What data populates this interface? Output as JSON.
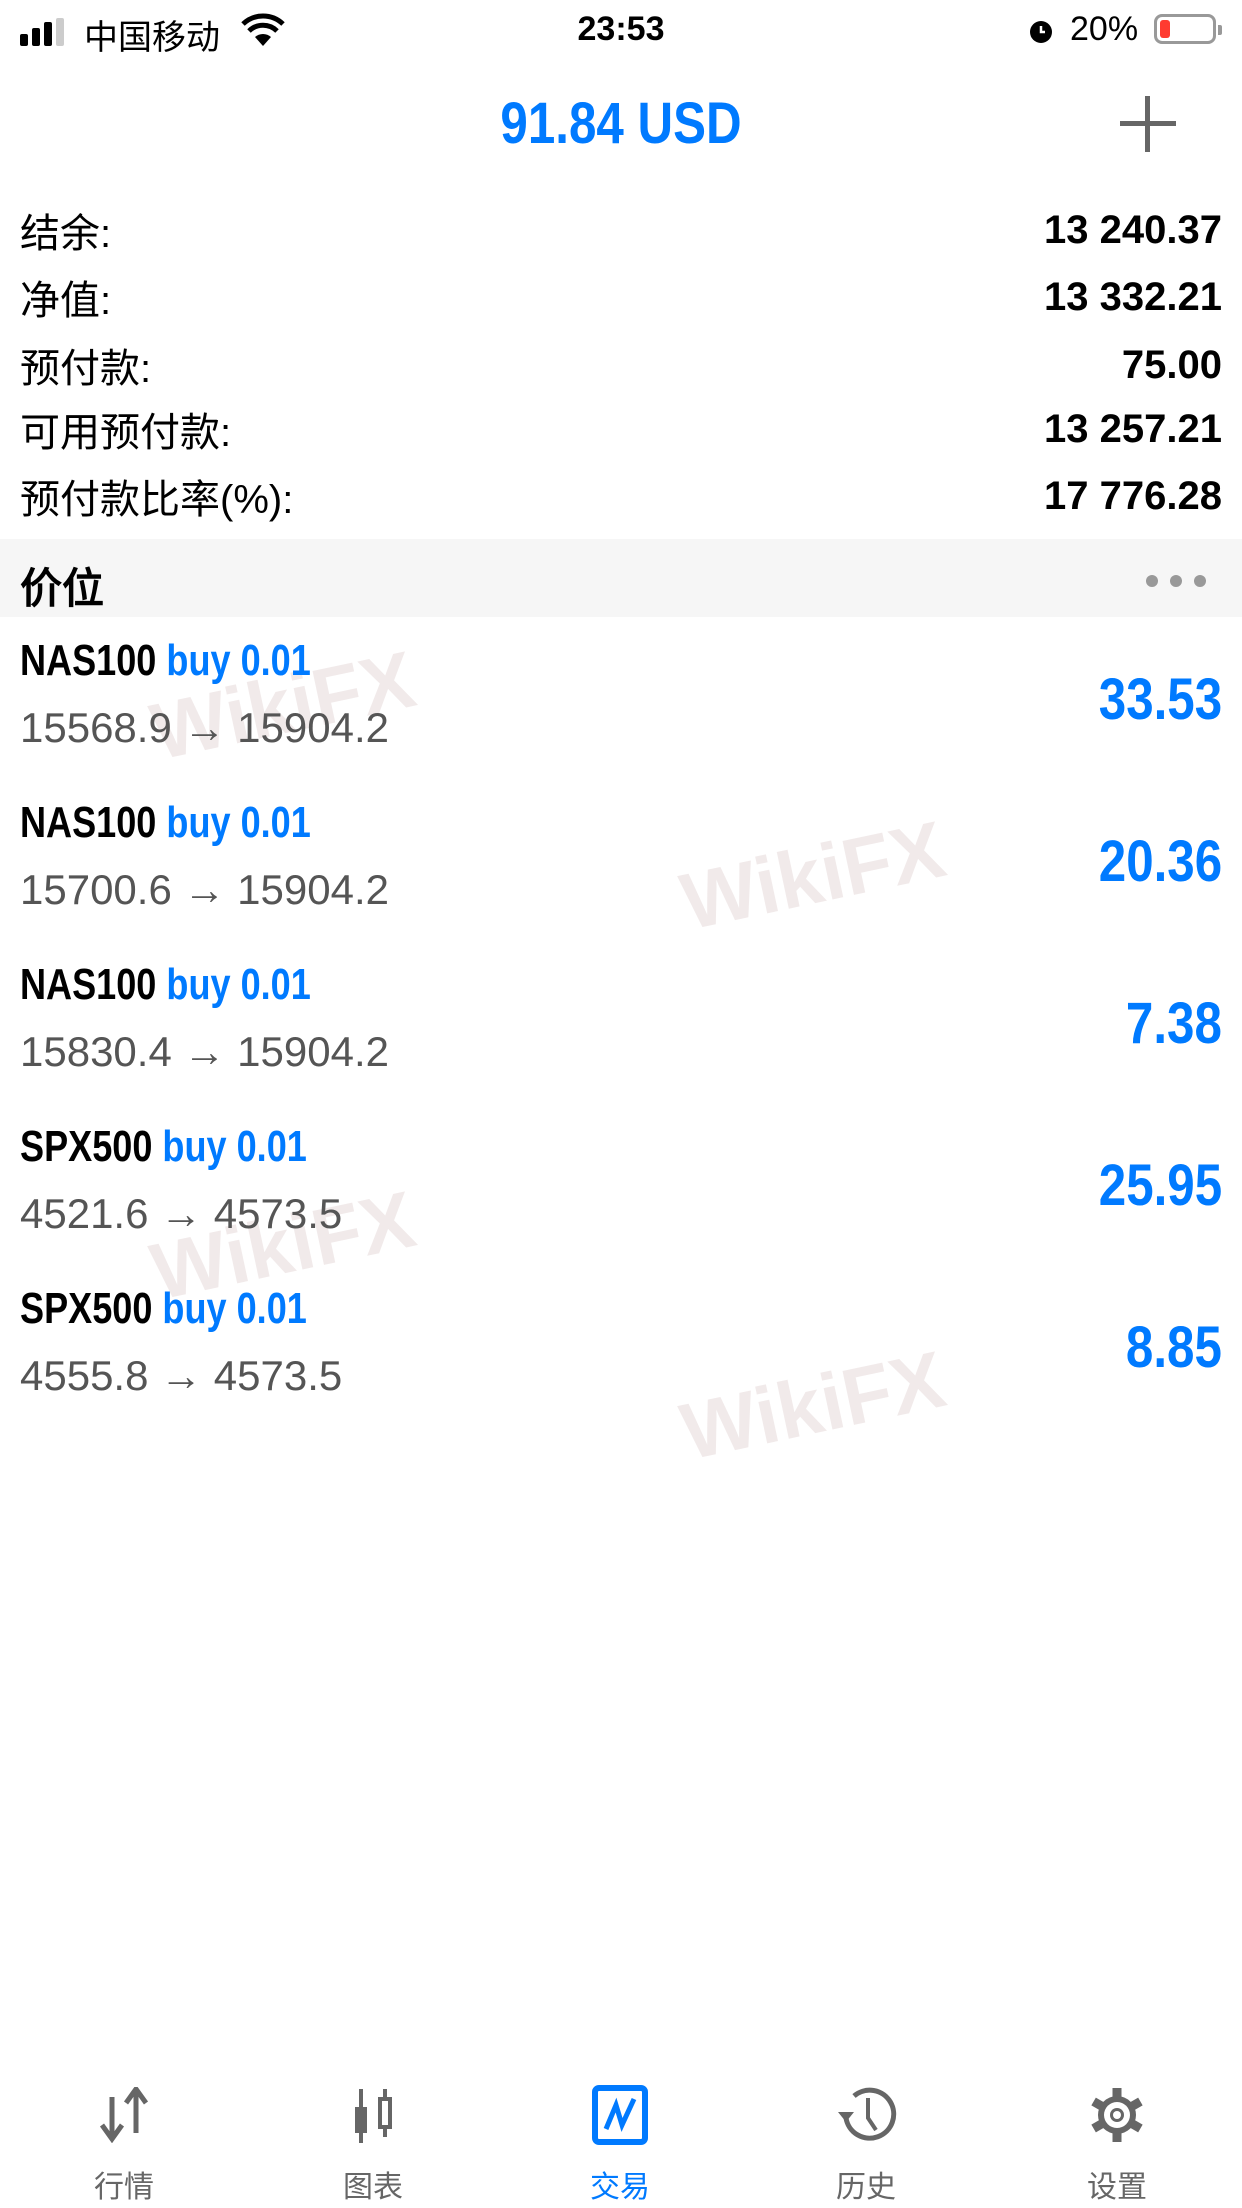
{
  "status_bar": {
    "carrier": "中国移动",
    "time": "23:53",
    "battery": "20%",
    "battery_level": 0.2,
    "battery_color": "#ff3b30"
  },
  "header": {
    "title": "91.84 USD",
    "add_label": "+"
  },
  "summary": [
    {
      "label": "结余:",
      "value": "13 240.37"
    },
    {
      "label": "净值:",
      "value": "13 332.21"
    },
    {
      "label": "预付款:",
      "value": "75.00"
    },
    {
      "label": "可用预付款:",
      "value": "13 257.21"
    },
    {
      "label": "预付款比率(%):",
      "value": "17 776.28"
    }
  ],
  "section": {
    "title": "价位"
  },
  "positions": [
    {
      "symbol": "NAS100",
      "type": "buy 0.01",
      "prices": "15568.9 → 15904.2",
      "profit": "33.53"
    },
    {
      "symbol": "NAS100",
      "type": "buy 0.01",
      "prices": "15700.6 → 15904.2",
      "profit": "20.36"
    },
    {
      "symbol": "NAS100",
      "type": "buy 0.01",
      "prices": "15830.4 → 15904.2",
      "profit": "7.38"
    },
    {
      "symbol": "SPX500",
      "type": "buy 0.01",
      "prices": "4521.6 → 4573.5",
      "profit": "25.95"
    },
    {
      "symbol": "SPX500",
      "type": "buy 0.01",
      "prices": "4555.8 → 4573.5",
      "profit": "8.85"
    }
  ],
  "watermark": "WikiFX",
  "tabs": [
    {
      "label": "行情",
      "icon": "arrows-updown-icon"
    },
    {
      "label": "图表",
      "icon": "candlestick-icon"
    },
    {
      "label": "交易",
      "icon": "trade-chart-icon",
      "active": true
    },
    {
      "label": "历史",
      "icon": "history-icon"
    },
    {
      "label": "设置",
      "icon": "gear-icon"
    }
  ],
  "colors": {
    "accent": "#007aff",
    "inactive": "#666666"
  }
}
